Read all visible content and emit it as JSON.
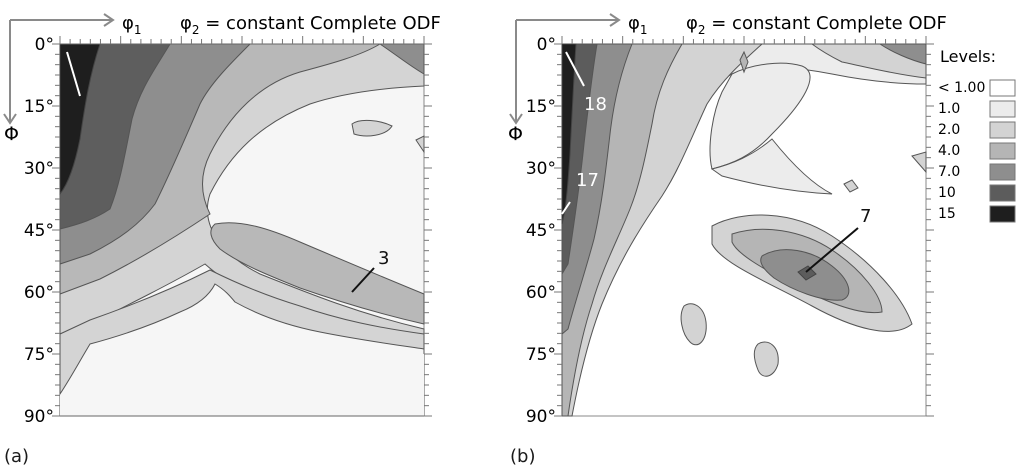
{
  "figure": {
    "panel_a_label": "(a)",
    "panel_b_label": "(b)"
  },
  "chart_data": [
    {
      "type": "heatmap",
      "panel": "(a)",
      "title_parts": {
        "axis_x": "φ1",
        "section": "φ2 = constant",
        "kind": "Complete ODF"
      },
      "xlabel": "φ1",
      "ylabel": "Φ",
      "yticks": [
        "0°",
        "15°",
        "30°",
        "45°",
        "60°",
        "75°",
        "90°"
      ],
      "ylim": [
        0,
        90
      ],
      "grid": false,
      "annotations": [
        {
          "text": "",
          "at": [
            3,
            4
          ]
        },
        {
          "text": "3",
          "at": [
            70,
            55
          ]
        }
      ],
      "contours": [
        {
          "level": "1.0",
          "description": "background/low-intensity regions"
        },
        {
          "level": "2.0"
        },
        {
          "level": "4.0"
        },
        {
          "level": "7.0"
        },
        {
          "level": "10"
        },
        {
          "level": "15",
          "location": "φ1 ≈ 0–10, Φ ≈ 0–45°"
        }
      ]
    },
    {
      "type": "heatmap",
      "panel": "(b)",
      "title_parts": {
        "axis_x": "φ1",
        "section": "φ2 = constant",
        "kind": "Complete ODF"
      },
      "xlabel": "φ1",
      "ylabel": "Φ",
      "yticks": [
        "0°",
        "15°",
        "30°",
        "45°",
        "60°",
        "75°",
        "90°"
      ],
      "ylim": [
        0,
        90
      ],
      "grid": false,
      "annotations": [
        {
          "text": "18",
          "at": [
            3,
            4
          ]
        },
        {
          "text": "17",
          "at": [
            1,
            37
          ]
        },
        {
          "text": "7",
          "at": [
            47,
            56
          ]
        }
      ],
      "legend": {
        "title": "Levels:",
        "placement": "right",
        "entries": [
          {
            "label": "< 1.00",
            "color": "#ffffff"
          },
          {
            "label": "1.0",
            "color": "#ececec"
          },
          {
            "label": "2.0",
            "color": "#d3d3d3"
          },
          {
            "label": "4.0",
            "color": "#b5b5b5"
          },
          {
            "label": "7.0",
            "color": "#8e8e8e"
          },
          {
            "label": "10",
            "color": "#5c5c5c"
          },
          {
            "label": "15",
            "color": "#1e1e1e"
          }
        ]
      }
    }
  ]
}
